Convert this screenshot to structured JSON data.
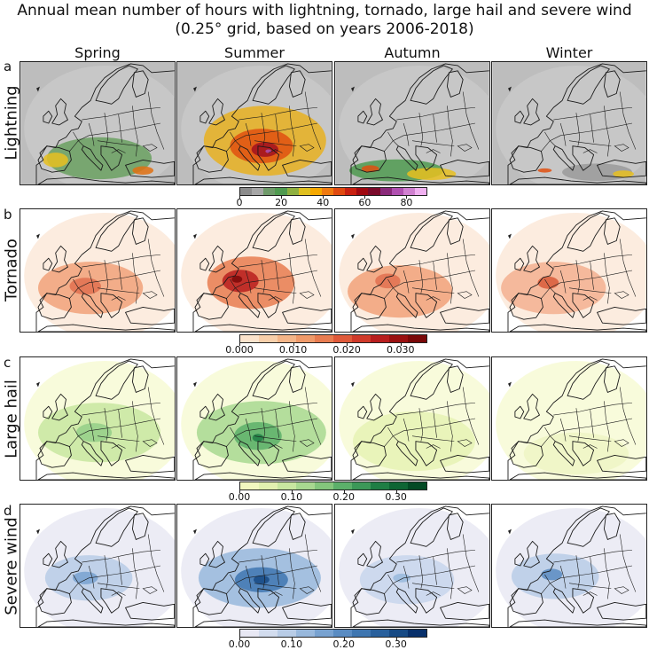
{
  "title": {
    "line1": "Annual mean number of hours with lightning, tornado, large hail and severe wind",
    "line2": "(0.25° grid, based on years 2006-2018)"
  },
  "seasons": [
    "Spring",
    "Summer",
    "Autumn",
    "Winter"
  ],
  "rows": [
    {
      "letter": "a",
      "label": "Lightning",
      "colorbar": {
        "colors": [
          "#8c8c8c",
          "#a6a6a6",
          "#6f9a6a",
          "#4f9a50",
          "#8fb040",
          "#e0c020",
          "#f5a800",
          "#f07a10",
          "#e04a10",
          "#c82010",
          "#a00810",
          "#7a0a2a",
          "#8a2a7a",
          "#b050b0",
          "#d080d0",
          "#f0b0f0"
        ],
        "ticks": [
          {
            "v": 0,
            "label": "0"
          },
          {
            "v": 20,
            "label": "20"
          },
          {
            "v": 40,
            "label": "40"
          },
          {
            "v": 60,
            "label": "60"
          },
          {
            "v": 80,
            "label": "80"
          }
        ],
        "range": [
          0,
          90
        ]
      },
      "base": "#c8c8c8",
      "hotspots": [
        [
          {
            "c": "#6aa060",
            "w": 1
          },
          {
            "c": "#e8c020",
            "w": 0.6
          },
          {
            "c": "#e07010",
            "w": 0.4
          }
        ],
        [
          {
            "c": "#e8b020",
            "w": 1
          },
          {
            "c": "#e05010",
            "w": 0.9
          },
          {
            "c": "#a01020",
            "w": 0.7
          },
          {
            "c": "#b050b0",
            "w": 0.35
          }
        ],
        [
          {
            "c": "#4f9a50",
            "w": 0.9
          },
          {
            "c": "#e8c020",
            "w": 0.7
          },
          {
            "c": "#e05010",
            "w": 0.5
          }
        ],
        [
          {
            "c": "#9a9a9a",
            "w": 1
          },
          {
            "c": "#e8c020",
            "w": 0.5
          },
          {
            "c": "#e05010",
            "w": 0.4
          }
        ]
      ]
    },
    {
      "letter": "b",
      "label": "Tornado",
      "colorbar": {
        "colors": [
          "#fbe3cc",
          "#f8cfaa",
          "#f4b588",
          "#ef9a6a",
          "#e87c50",
          "#df5a3a",
          "#cf3a2a",
          "#b81e1e",
          "#9a1010",
          "#7a0808"
        ],
        "ticks": [
          {
            "v": 0.0,
            "label": "0.000"
          },
          {
            "v": 0.01,
            "label": "0.010"
          },
          {
            "v": 0.02,
            "label": "0.020"
          },
          {
            "v": 0.03,
            "label": "0.030"
          }
        ],
        "range": [
          0,
          0.035
        ]
      },
      "base": "#fbe6d4",
      "hotspots": [
        [
          {
            "c": "#f1a27a",
            "w": 1
          },
          {
            "c": "#e07050",
            "w": 0.6
          }
        ],
        [
          {
            "c": "#e87c50",
            "w": 1
          },
          {
            "c": "#b81e1e",
            "w": 0.8
          },
          {
            "c": "#7a0808",
            "w": 0.5
          }
        ],
        [
          {
            "c": "#f1a27a",
            "w": 1
          },
          {
            "c": "#e07050",
            "w": 0.6
          }
        ],
        [
          {
            "c": "#f3b090",
            "w": 1
          },
          {
            "c": "#d85a3a",
            "w": 0.5
          }
        ]
      ]
    },
    {
      "letter": "c",
      "label": "Large hail",
      "colorbar": {
        "colors": [
          "#f2f7c0",
          "#e2f0b0",
          "#c8e6a0",
          "#a8d890",
          "#84c67c",
          "#5cb06a",
          "#3c9858",
          "#1f7e44",
          "#0e6534",
          "#034a25"
        ],
        "ticks": [
          {
            "v": 0.0,
            "label": "0.00"
          },
          {
            "v": 0.1,
            "label": "0.10"
          },
          {
            "v": 0.2,
            "label": "0.20"
          },
          {
            "v": 0.3,
            "label": "0.30"
          }
        ],
        "range": [
          0,
          0.36
        ]
      },
      "base": "#f5f9cf",
      "hotspots": [
        [
          {
            "c": "#c8e6a0",
            "w": 1
          },
          {
            "c": "#94cf88",
            "w": 0.6
          }
        ],
        [
          {
            "c": "#a8d890",
            "w": 1
          },
          {
            "c": "#5cb06a",
            "w": 0.8
          },
          {
            "c": "#1f7e44",
            "w": 0.45
          }
        ],
        [
          {
            "c": "#e6f2b4",
            "w": 1
          }
        ],
        [
          {
            "c": "#eef5c4",
            "w": 1
          }
        ]
      ]
    },
    {
      "letter": "d",
      "label": "Severe wind",
      "colorbar": {
        "colors": [
          "#e8e8f4",
          "#d2dcee",
          "#b8cce6",
          "#98b8dc",
          "#78a2d0",
          "#5a8cc2",
          "#3f76b0",
          "#29609c",
          "#174a84",
          "#08306b"
        ],
        "ticks": [
          {
            "v": 0.0,
            "label": "0.00"
          },
          {
            "v": 0.1,
            "label": "0.10"
          },
          {
            "v": 0.2,
            "label": "0.20"
          },
          {
            "v": 0.3,
            "label": "0.30"
          }
        ],
        "range": [
          0,
          0.36
        ]
      },
      "base": "#e6e6f2",
      "hotspots": [
        [
          {
            "c": "#b8cce6",
            "w": 1
          },
          {
            "c": "#78a2d0",
            "w": 0.6
          }
        ],
        [
          {
            "c": "#98b8dc",
            "w": 1
          },
          {
            "c": "#3f76b0",
            "w": 0.8
          },
          {
            "c": "#174a84",
            "w": 0.5
          }
        ],
        [
          {
            "c": "#c8d6ec",
            "w": 1
          },
          {
            "c": "#98b8dc",
            "w": 0.5
          }
        ],
        [
          {
            "c": "#b8cce6",
            "w": 1
          },
          {
            "c": "#5a8cc2",
            "w": 0.55
          }
        ]
      ]
    }
  ]
}
